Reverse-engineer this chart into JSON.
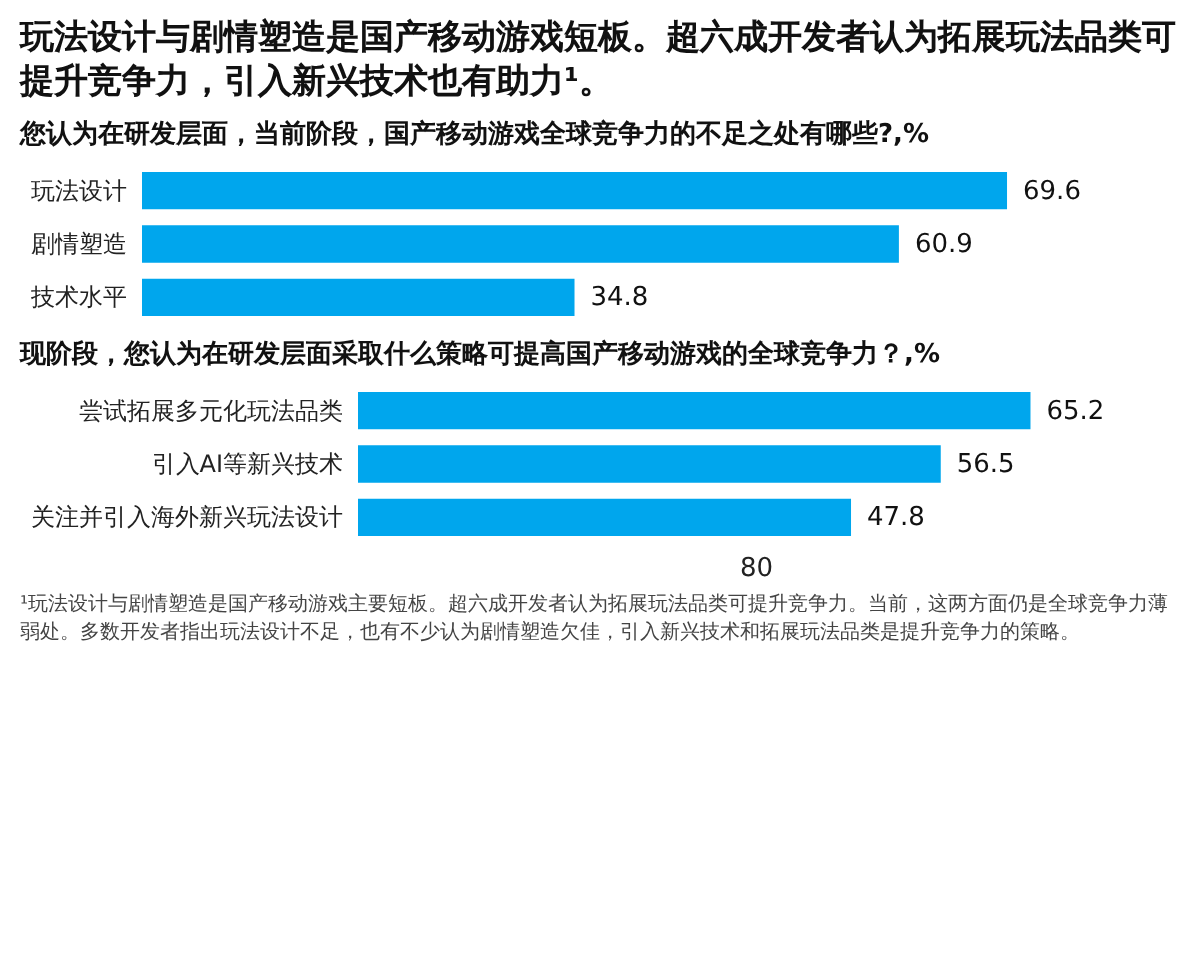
{
  "chart_data": [
    {
      "type": "bar",
      "orientation": "horizontal",
      "title": "玩法设计与剧情塑造是国产移动游戏短板。超六成开发者认为拓展玩法品类可提升竞争力，引入新兴技术也有助力¹。",
      "subtitle": "您认为在研发层面，当前阶段，国产移动游戏全球竞争力的不足之处有哪些?,%",
      "categories": [
        "玩法设计",
        "剧情塑造",
        "技术水平"
      ],
      "values": [
        69.6,
        60.9,
        34.8
      ],
      "color": "#00a6ed",
      "data_labels": true,
      "tick_labels": "y"
    },
    {
      "type": "bar",
      "orientation": "horizontal",
      "title": "现阶段，您认为在研发层面采取什么策略可提高国产移动游戏的全球竞争力？,%",
      "categories": [
        "尝试拓展多元化玩法品类",
        "引入AI等新兴技术",
        "关注并引入海外新兴玩法设计"
      ],
      "values": [
        65.2,
        56.5,
        47.8
      ],
      "color": "#00a6ed",
      "data_labels": true,
      "tick_labels": "y",
      "annotations": [
        "80",
        "¹玩法设计与剧情塑造是国产移动游戏主要短板。超六成开发者认为拓展玩法品类可提升竞争力。当前，这两方面仍是全球竞争力薄弱处。多数开发者指出玩法设计不足，也有不少认为剧情塑造欠佳，引入新兴技术和拓展玩法品类是提升竞争力的策略。"
      ]
    }
  ]
}
